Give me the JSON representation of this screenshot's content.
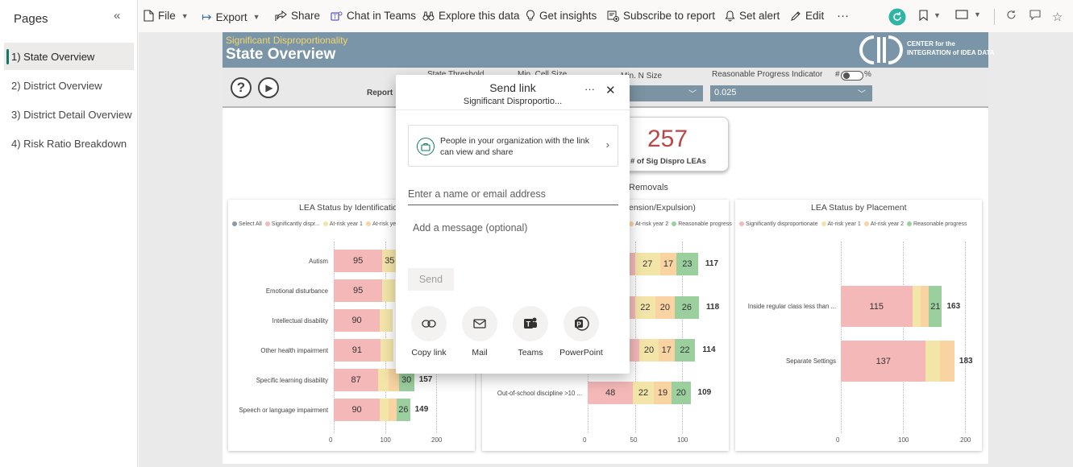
{
  "sidebar": {
    "title": "Pages",
    "collapse_icon": "chevron-double-left-icon",
    "pages": [
      "1) State Overview",
      "2) District Overview",
      "3) District Detail Overview",
      "4) Risk Ratio Breakdown"
    ],
    "active_index": 0
  },
  "toolbar": {
    "file": "File",
    "export": "Export",
    "share": "Share",
    "chat": "Chat in Teams",
    "explore": "Explore this data",
    "insights": "Get insights",
    "subscribe": "Subscribe to report",
    "alert": "Set alert",
    "edit": "Edit",
    "more": "···"
  },
  "report": {
    "subtitle": "Significant Disproportionality",
    "title": "State Overview",
    "logo_line1": "CENTER for the",
    "logo_line2": "INTEGRATION of IDEA DATA",
    "filters": {
      "report_label": "Report",
      "state_threshold_label": "State Threshold",
      "min_cell_label": "Min. Cell Size",
      "min_n_label": "Min. N Size",
      "rpi_label": "Reasonable Progress Indicator",
      "rpi_hash": "#",
      "rpi_pct": "%",
      "rpi_value": "0.025"
    },
    "kpi_value": "257",
    "kpi_label": "# of Sig Dispro LEAs",
    "removals_label": "Removals"
  },
  "colors": {
    "significant": "#f4b8b8",
    "at_risk_1": "#f3e4a8",
    "at_risk_2": "#f9d3a1",
    "reasonable": "#9bcf9e",
    "select_all": "#8a9aa6"
  },
  "charts": {
    "identification": {
      "title": "LEA Status by Identification",
      "legend": [
        "Select All",
        "Significantly dispr...",
        "At-risk year 1",
        "At-risk year 2"
      ],
      "categories": [
        "Autism",
        "Emotional disturbance",
        "Intellectual disability",
        "Other health impairment",
        "Specific learning disability",
        "Speech or language impairment"
      ],
      "first_values": [
        "95",
        "95",
        "90",
        "91",
        "87",
        "90"
      ],
      "second_values": [
        "35",
        "",
        "",
        "",
        "",
        ""
      ],
      "last_values": [
        "",
        "",
        "",
        "",
        "30",
        "26"
      ],
      "totals": [
        "",
        "",
        "",
        "",
        "157",
        "149"
      ],
      "ticks": [
        "0",
        "100",
        "200"
      ]
    },
    "removals": {
      "title": "LEA Status by Removals (Suspension/Expulsion)",
      "visible_title": "ension/Expulsion)",
      "legend": [
        "At-risk year 2",
        "Reasonable progress"
      ],
      "categories": [
        "",
        "",
        "",
        "Out-of-school discipline >10 ..."
      ],
      "sig": [
        "",
        "",
        "",
        "48"
      ],
      "ar1": [
        "27",
        "22",
        "20",
        "22"
      ],
      "ar2": [
        "17",
        "20",
        "17",
        "19"
      ],
      "rp": [
        "23",
        "26",
        "22",
        "20"
      ],
      "totals": [
        "117",
        "118",
        "114",
        "109"
      ],
      "ticks": [
        "0",
        "50",
        "100"
      ]
    },
    "placement": {
      "title": "LEA Status by Placement",
      "legend": [
        "Significantly disproportionate",
        "At-risk year 1",
        "At-risk year 2",
        "Reasonable progress"
      ],
      "categories": [
        "Inside regular class less than ...",
        "Separate Settings"
      ],
      "sig": [
        "115",
        "137"
      ],
      "rp": [
        "21",
        ""
      ],
      "totals": [
        "163",
        "183"
      ],
      "ticks": [
        "0",
        "100",
        "200"
      ]
    }
  },
  "chart_data": [
    {
      "type": "bar",
      "title": "LEA Status by Identification",
      "categories": [
        "Autism",
        "Emotional disturbance",
        "Intellectual disability",
        "Other health impairment",
        "Specific learning disability",
        "Speech or language impairment"
      ],
      "series": [
        {
          "name": "Significantly disproportionate",
          "values": [
            95,
            95,
            90,
            91,
            87,
            90
          ]
        },
        {
          "name": "Reasonable progress (partial)",
          "values": [
            null,
            null,
            null,
            null,
            30,
            26
          ]
        }
      ],
      "totals": [
        null,
        null,
        null,
        null,
        157,
        149
      ],
      "xlim": [
        0,
        200
      ]
    },
    {
      "type": "bar",
      "title": "LEA Status by Removals (Suspension/Expulsion)",
      "categories": [
        "(hidden)",
        "(hidden)",
        "(hidden)",
        "Out-of-school discipline >10 ..."
      ],
      "series": [
        {
          "name": "Significantly disproportionate",
          "values": [
            null,
            null,
            null,
            48
          ]
        },
        {
          "name": "At-risk year 1",
          "values": [
            27,
            22,
            20,
            22
          ]
        },
        {
          "name": "At-risk year 2",
          "values": [
            17,
            20,
            17,
            19
          ]
        },
        {
          "name": "Reasonable progress",
          "values": [
            23,
            26,
            22,
            20
          ]
        }
      ],
      "totals": [
        117,
        118,
        114,
        109
      ],
      "xlim": [
        0,
        100
      ]
    },
    {
      "type": "bar",
      "title": "LEA Status by Placement",
      "categories": [
        "Inside regular class less than ...",
        "Separate Settings"
      ],
      "series": [
        {
          "name": "Significantly disproportionate",
          "values": [
            115,
            137
          ]
        },
        {
          "name": "Reasonable progress",
          "values": [
            21,
            null
          ]
        }
      ],
      "totals": [
        163,
        183
      ],
      "xlim": [
        0,
        200
      ]
    }
  ],
  "dialog": {
    "title": "Send link",
    "subtitle": "Significant Disproportio...",
    "more": "···",
    "close": "✕",
    "permission_text": "People in your organization with the link can view and share",
    "name_placeholder": "Enter a name or email address",
    "message_placeholder": "Add a message (optional)",
    "send": "Send",
    "share_options": [
      "Copy link",
      "Mail",
      "Teams",
      "PowerPoint"
    ]
  }
}
